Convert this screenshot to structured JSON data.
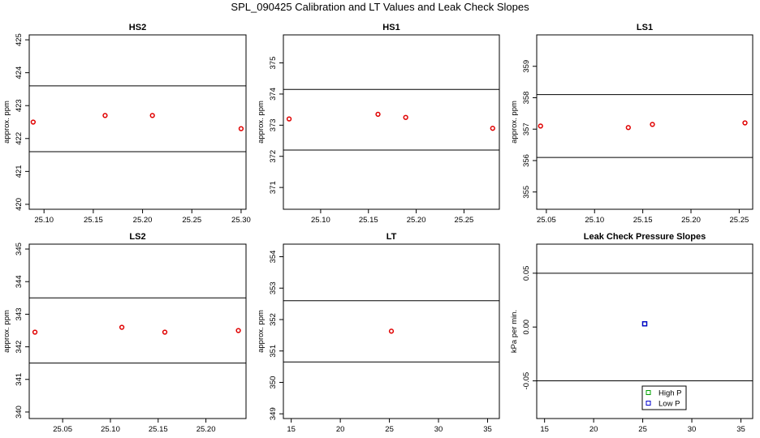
{
  "title": "SPL_090425  Calibration and LT Values and Leak Check Slopes",
  "colors": {
    "point": "#e00000",
    "high_p": "#00a000",
    "low_p": "#0000cc",
    "line": "#000000"
  },
  "chart_data": [
    {
      "type": "scatter",
      "title": "HS2",
      "ylabel": "approx. ppm",
      "xlim": [
        25.085,
        25.305
      ],
      "ylim": [
        419.85,
        425.15
      ],
      "xticks": [
        25.1,
        25.15,
        25.2,
        25.25,
        25.3
      ],
      "xtick_labels": [
        "25.10",
        "25.15",
        "25.20",
        "25.25",
        "25.30"
      ],
      "yticks": [
        420,
        421,
        422,
        423,
        424,
        425
      ],
      "ytick_labels": [
        "420",
        "421",
        "422",
        "423",
        "424",
        "425"
      ],
      "hlines": [
        421.6,
        423.6
      ],
      "points": [
        [
          25.089,
          422.5
        ],
        [
          25.162,
          422.7
        ],
        [
          25.21,
          422.7
        ],
        [
          25.3,
          422.3
        ]
      ],
      "grid": false
    },
    {
      "type": "scatter",
      "title": "HS1",
      "ylabel": "approx. ppm",
      "xlim": [
        25.061,
        25.287
      ],
      "ylim": [
        370.3,
        375.9
      ],
      "xticks": [
        25.1,
        25.15,
        25.2,
        25.25
      ],
      "xtick_labels": [
        "25.10",
        "25.15",
        "25.20",
        "25.25"
      ],
      "yticks": [
        371,
        372,
        373,
        374,
        375
      ],
      "ytick_labels": [
        "371",
        "372",
        "373",
        "374",
        "375"
      ],
      "hlines": [
        372.2,
        374.15
      ],
      "points": [
        [
          25.067,
          373.2
        ],
        [
          25.16,
          373.35
        ],
        [
          25.189,
          373.25
        ],
        [
          25.28,
          372.9
        ]
      ],
      "grid": false
    },
    {
      "type": "scatter",
      "title": "LS1",
      "ylabel": "approx. ppm",
      "xlim": [
        25.04,
        25.264
      ],
      "ylim": [
        354.45,
        360.0
      ],
      "xticks": [
        25.05,
        25.1,
        25.15,
        25.2,
        25.25
      ],
      "xtick_labels": [
        "25.05",
        "25.10",
        "25.15",
        "25.20",
        "25.25"
      ],
      "yticks": [
        355,
        356,
        357,
        358,
        359
      ],
      "ytick_labels": [
        "355",
        "356",
        "357",
        "358",
        "359"
      ],
      "hlines": [
        356.1,
        358.1
      ],
      "points": [
        [
          25.044,
          357.1
        ],
        [
          25.135,
          357.05
        ],
        [
          25.16,
          357.15
        ],
        [
          25.256,
          357.2
        ]
      ],
      "grid": false
    },
    {
      "type": "scatter",
      "title": "LS2",
      "ylabel": "approx. ppm",
      "xlim": [
        25.015,
        25.242
      ],
      "ylim": [
        339.8,
        345.15
      ],
      "xticks": [
        25.05,
        25.1,
        25.15,
        25.2
      ],
      "xtick_labels": [
        "25.05",
        "25.10",
        "25.15",
        "25.20"
      ],
      "yticks": [
        340,
        341,
        342,
        343,
        344,
        345
      ],
      "ytick_labels": [
        "340",
        "341",
        "342",
        "343",
        "344",
        "345"
      ],
      "hlines": [
        341.5,
        343.5
      ],
      "points": [
        [
          25.021,
          342.45
        ],
        [
          25.112,
          342.6
        ],
        [
          25.157,
          342.45
        ],
        [
          25.234,
          342.5
        ]
      ],
      "grid": false
    },
    {
      "type": "scatter",
      "title": "LT",
      "ylabel": "approx. ppm",
      "xlim": [
        14.2,
        36.2
      ],
      "ylim": [
        348.85,
        354.4
      ],
      "xticks": [
        15,
        20,
        25,
        30,
        35
      ],
      "xtick_labels": [
        "15",
        "20",
        "25",
        "30",
        "35"
      ],
      "yticks": [
        349,
        350,
        351,
        352,
        353,
        354
      ],
      "ytick_labels": [
        "349",
        "350",
        "351",
        "352",
        "353",
        "354"
      ],
      "hlines": [
        350.65,
        352.6
      ],
      "points": [
        [
          25.2,
          351.63
        ]
      ],
      "grid": false
    },
    {
      "type": "scatter",
      "title": "Leak Check Pressure Slopes",
      "ylabel": "kPa per min.",
      "xlim": [
        14.2,
        36.2
      ],
      "ylim": [
        -0.085,
        0.077
      ],
      "xticks": [
        15,
        20,
        25,
        30,
        35
      ],
      "xtick_labels": [
        "15",
        "20",
        "25",
        "30",
        "35"
      ],
      "yticks": [
        -0.05,
        0.0,
        0.05
      ],
      "ytick_labels": [
        "-0.05",
        "0.00",
        "0.05"
      ],
      "hlines": [
        -0.05,
        0.05
      ],
      "points": [
        [
          25.2,
          0.003
        ]
      ],
      "high_p_points": [
        [
          25.2,
          0.003
        ]
      ],
      "low_p_points": [
        [
          25.2,
          0.003
        ]
      ],
      "legend": {
        "placement": "bottom-center",
        "entries": [
          "High P",
          "Low P"
        ]
      },
      "grid": false
    }
  ]
}
